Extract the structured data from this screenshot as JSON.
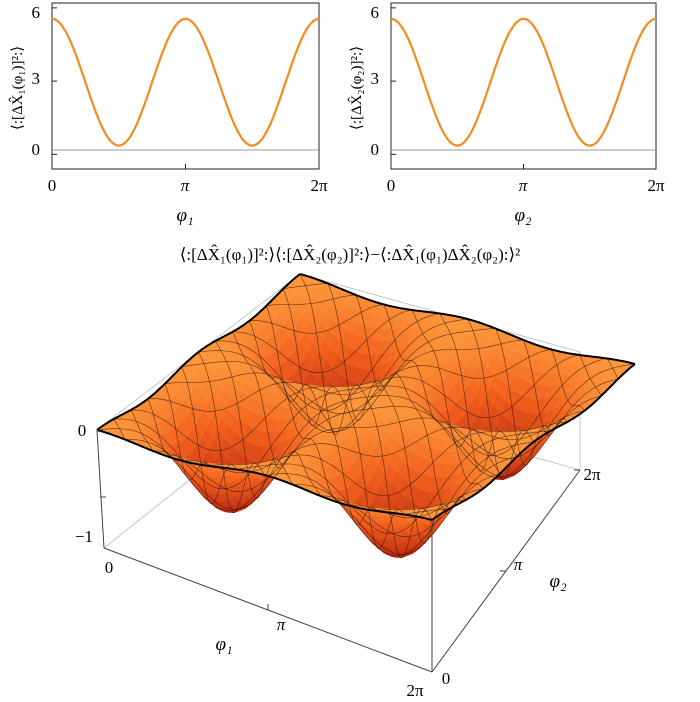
{
  "chart_data": [
    {
      "type": "line",
      "ylabel": "⟨:[ΔX̂₁(φ₁)]²:⟩",
      "xlabel": "φ₁",
      "xlim": [
        0,
        6.2832
      ],
      "ylim": [
        -0.6,
        6.2
      ],
      "x_ticks": [
        "0",
        "π",
        "2π"
      ],
      "y_ticks": [
        "0",
        "3",
        "6"
      ],
      "series": [
        {
          "color": "#f28c1e",
          "x": [
            0,
            0.3927,
            0.7854,
            1.1781,
            1.5708,
            1.9635,
            2.3562,
            2.7489,
            3.1416,
            3.5343,
            3.927,
            4.3197,
            4.7124,
            5.1051,
            5.4978,
            5.8905,
            6.2832
          ],
          "values": [
            5.55,
            5.13,
            3.96,
            2.21,
            0.36,
            2.21,
            3.96,
            5.13,
            5.55,
            5.13,
            3.96,
            2.21,
            0.36,
            2.21,
            3.96,
            5.13,
            5.55
          ]
        }
      ],
      "baseline": 0,
      "grid": false
    },
    {
      "type": "line",
      "ylabel": "⟨:[ΔX̂₂(φ₂)]²:⟩",
      "xlabel": "φ₂",
      "xlim": [
        0,
        6.2832
      ],
      "ylim": [
        -0.6,
        6.2
      ],
      "x_ticks": [
        "0",
        "π",
        "2π"
      ],
      "y_ticks": [
        "0",
        "3",
        "6"
      ],
      "series": [
        {
          "color": "#f28c1e",
          "x": [
            0,
            0.3927,
            0.7854,
            1.1781,
            1.5708,
            1.9635,
            2.3562,
            2.7489,
            3.1416,
            3.5343,
            3.927,
            4.3197,
            4.7124,
            5.1051,
            5.4978,
            5.8905,
            6.2832
          ],
          "values": [
            5.55,
            5.13,
            3.96,
            2.21,
            0.36,
            2.21,
            3.96,
            5.13,
            5.55,
            5.13,
            3.96,
            2.21,
            0.36,
            2.21,
            3.96,
            5.13,
            5.55
          ]
        }
      ],
      "baseline": 0,
      "grid": false
    },
    {
      "type": "surface",
      "title": "⟨:[ΔX̂₁(φ₁)]²:⟩⟨:[ΔX̂₂(φ₂)]²:⟩−⟨:ΔX̂₁(φ₁)ΔX̂₂(φ₂):⟩²",
      "x_axis_label": "φ₁",
      "y_axis_label": "φ₂",
      "x_ticks": [
        "0",
        "π",
        "2π"
      ],
      "y_ticks": [
        "0",
        "π",
        "2π"
      ],
      "z_ticks": [
        "0",
        "−1"
      ],
      "xlim": [
        0,
        6.2832
      ],
      "ylim": [
        0,
        6.2832
      ],
      "zlim": [
        -1.5,
        0.3
      ],
      "colors": {
        "surface": "#f2601e",
        "top": "#ffa040",
        "dark": "#b0200e",
        "mesh": "#2a1208"
      }
    }
  ]
}
